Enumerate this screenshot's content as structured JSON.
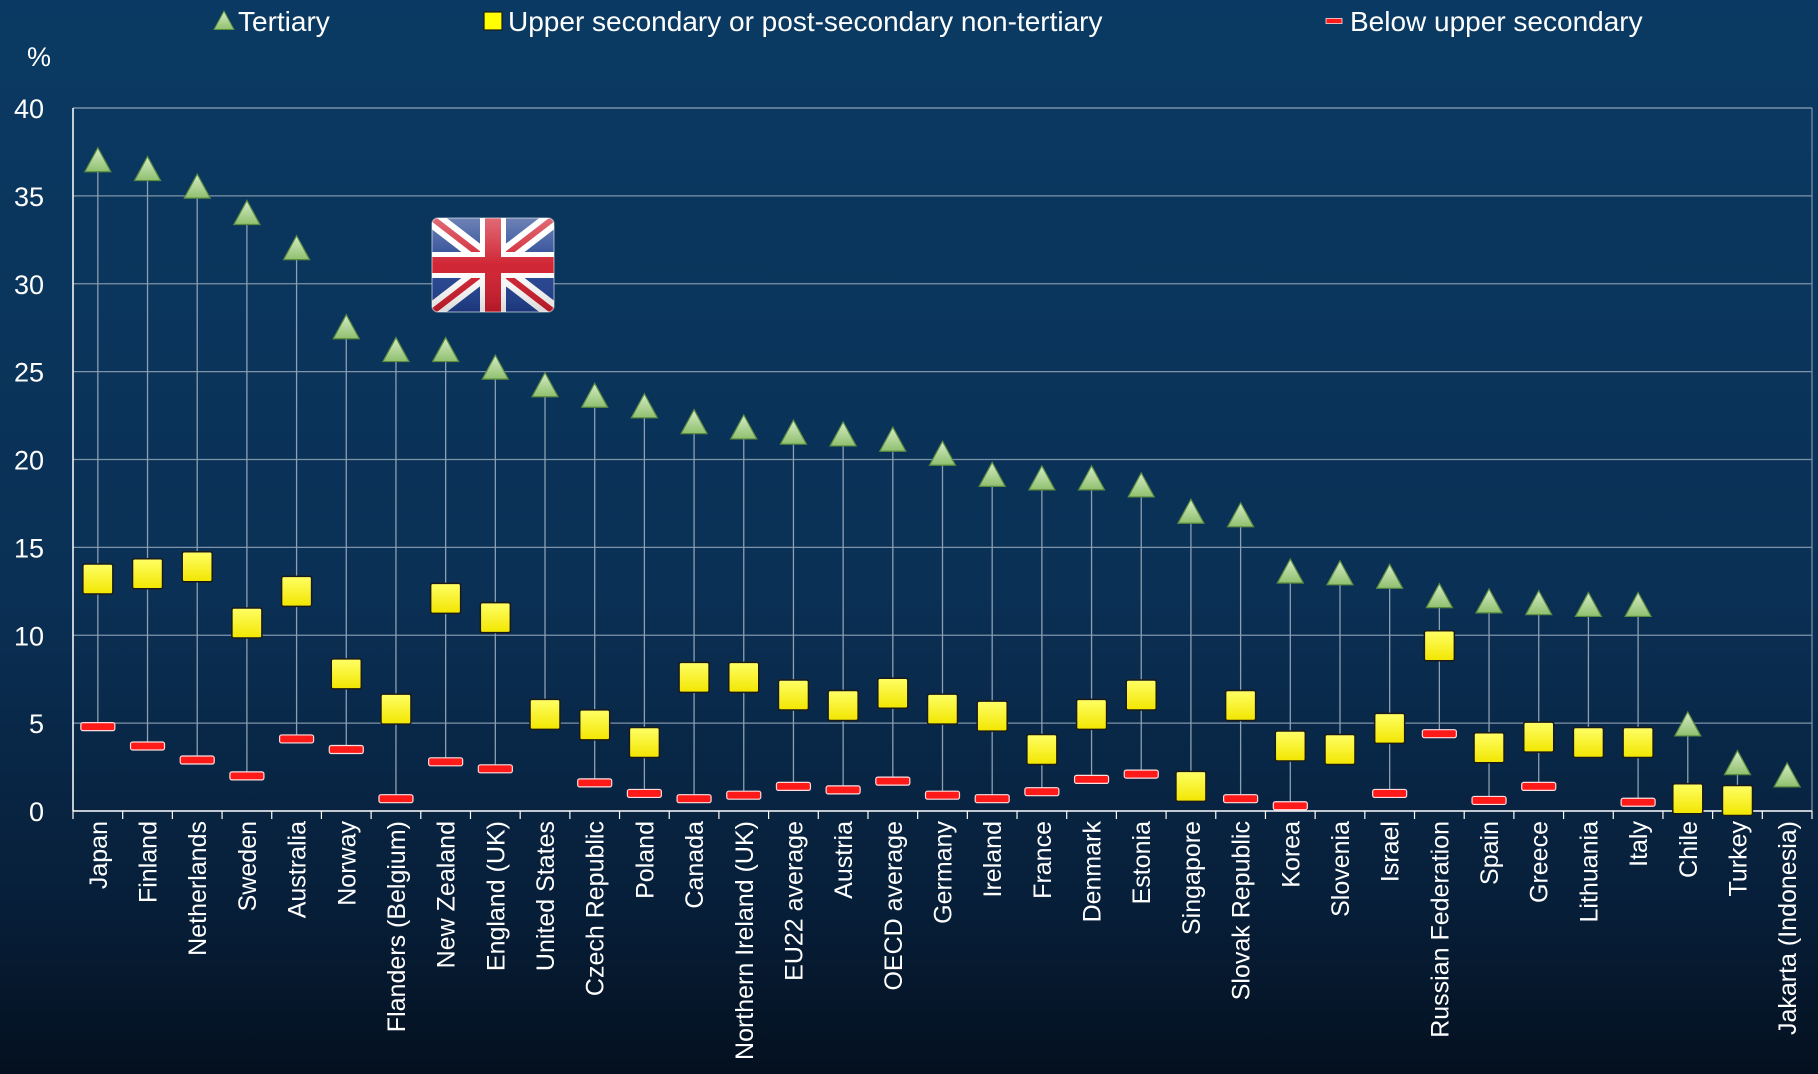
{
  "chart_data": {
    "type": "scatter",
    "y_unit": "%",
    "ylim": [
      0,
      40
    ],
    "yticks": [
      0,
      5,
      10,
      15,
      20,
      25,
      30,
      35,
      40
    ],
    "grid": true,
    "legend_position": "top",
    "categories": [
      "Japan",
      "Finland",
      "Netherlands",
      "Sweden",
      "Australia",
      "Norway",
      "Flanders (Belgium)",
      "New Zealand",
      "England (UK)",
      "United States",
      "Czech Republic",
      "Poland",
      "Canada",
      "Northern Ireland (UK)",
      "EU22 average",
      "Austria",
      "OECD average",
      "Germany",
      "Ireland",
      "France",
      "Denmark",
      "Estonia",
      "Singapore",
      "Slovak Republic",
      "Korea",
      "Slovenia",
      "Israel",
      "Russian Federation",
      "Spain",
      "Greece",
      "Lithuania",
      "Italy",
      "Chile",
      "Turkey",
      "Jakarta (Indonesia)"
    ],
    "series": [
      {
        "name": "Tertiary",
        "marker": "triangle",
        "color": "#a8d08d",
        "values": [
          37.0,
          36.5,
          35.5,
          34.0,
          32.0,
          27.5,
          26.2,
          26.2,
          25.2,
          24.2,
          23.6,
          23.0,
          22.1,
          21.8,
          21.5,
          21.4,
          21.1,
          20.3,
          19.1,
          18.9,
          18.9,
          18.5,
          17.0,
          16.8,
          13.6,
          13.5,
          13.3,
          12.2,
          11.9,
          11.8,
          11.7,
          11.7,
          4.9,
          2.7,
          2.0
        ]
      },
      {
        "name": "Upper secondary or post-secondary non-tertiary",
        "marker": "square",
        "color": "#ffff00",
        "values": [
          13.2,
          13.5,
          13.9,
          10.7,
          12.5,
          7.8,
          5.8,
          12.1,
          11.0,
          5.5,
          4.9,
          3.9,
          7.6,
          7.6,
          6.6,
          6.0,
          6.7,
          5.8,
          5.4,
          3.5,
          5.5,
          6.6,
          1.4,
          6.0,
          3.7,
          3.5,
          4.7,
          9.4,
          3.6,
          4.2,
          3.9,
          3.9,
          0.7,
          0.6,
          null
        ]
      },
      {
        "name": "Below upper secondary",
        "marker": "dash",
        "color": "#ff0000",
        "values": [
          4.8,
          3.7,
          2.9,
          2.0,
          4.1,
          3.5,
          0.7,
          2.8,
          2.4,
          null,
          1.6,
          1.0,
          0.7,
          0.9,
          1.4,
          1.2,
          1.7,
          0.9,
          0.7,
          1.1,
          1.8,
          2.1,
          null,
          0.7,
          0.3,
          null,
          1.0,
          4.4,
          0.6,
          1.4,
          null,
          0.5,
          null,
          null,
          null
        ]
      }
    ]
  },
  "flag_icon": "union-jack-flag-icon",
  "colors": {
    "background_top": "#0a3a63",
    "background_bottom": "#04101f",
    "gridline": "#7f93a8",
    "axis": "#ffffff"
  }
}
